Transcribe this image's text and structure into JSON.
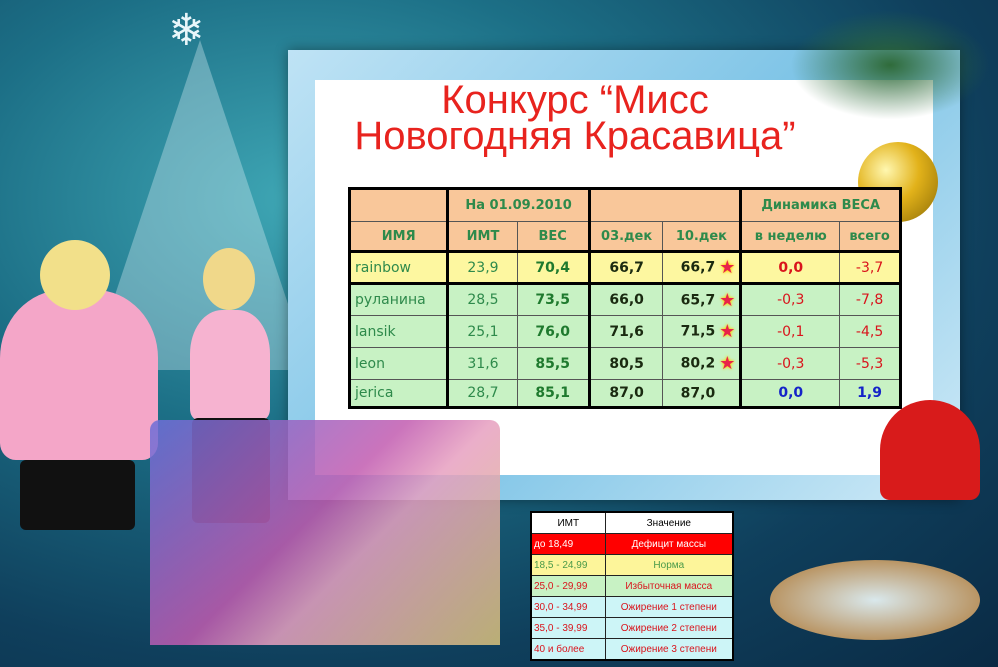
{
  "title_line1": "Конкурс “Мисс",
  "title_line2": "Новогодняя Красавица”",
  "table": {
    "date_header": "На 01.09.2010",
    "dynamics_header": "Динамика ВЕСА",
    "columns": [
      "ИМЯ",
      "ИМТ",
      "ВЕС",
      "03.дек",
      "10.дек",
      "в неделю",
      "всего"
    ],
    "rows": [
      {
        "name": "rainbow",
        "bmi": "23,9",
        "weight": "70,4",
        "d03": "66,7",
        "d10": "66,7",
        "star": true,
        "week": "0,0",
        "total": "-3,7"
      },
      {
        "name": "руланина",
        "bmi": "28,5",
        "weight": "73,5",
        "d03": "66,0",
        "d10": "65,7",
        "star": true,
        "week": "-0,3",
        "total": "-7,8"
      },
      {
        "name": "lansik",
        "bmi": "25,1",
        "weight": "76,0",
        "d03": "71,6",
        "d10": "71,5",
        "star": true,
        "week": "-0,1",
        "total": "-4,5"
      },
      {
        "name": "leon",
        "bmi": "31,6",
        "weight": "85,5",
        "d03": "80,5",
        "d10": "80,2",
        "star": true,
        "week": "-0,3",
        "total": "-5,3"
      },
      {
        "name": "jerica",
        "bmi": "28,7",
        "weight": "85,1",
        "d03": "87,0",
        "d10": "87,0",
        "star": false,
        "week": "0,0",
        "total": "1,9"
      }
    ]
  },
  "legend": {
    "headers": [
      "ИМТ",
      "Значение"
    ],
    "rows": [
      {
        "range": "до 18,49",
        "meaning": "Дефицит массы",
        "bg": "#ff0000",
        "color": "#ffffff"
      },
      {
        "range": "18,5 - 24,99",
        "meaning": "Норма",
        "bg": "#fdf59a",
        "color": "#4a9a4a"
      },
      {
        "range": "25,0 - 29,99",
        "meaning": "Избыточная масса",
        "bg": "#c8f2c4",
        "color": "#d9141c"
      },
      {
        "range": "30,0 - 34,99",
        "meaning": "Ожирение 1 степени",
        "bg": "#cdf5f7",
        "color": "#d9141c"
      },
      {
        "range": "35,0 - 39,99",
        "meaning": "Ожирение 2 степени",
        "bg": "#cdf5f7",
        "color": "#d9141c"
      },
      {
        "range": "40 и более",
        "meaning": "Ожирение 3 степени",
        "bg": "#cdf5f7",
        "color": "#d9141c"
      }
    ]
  },
  "colors": {
    "title": "#e8231e",
    "header_bg": "#f9c79a",
    "header_text": "#2e8a4b"
  }
}
